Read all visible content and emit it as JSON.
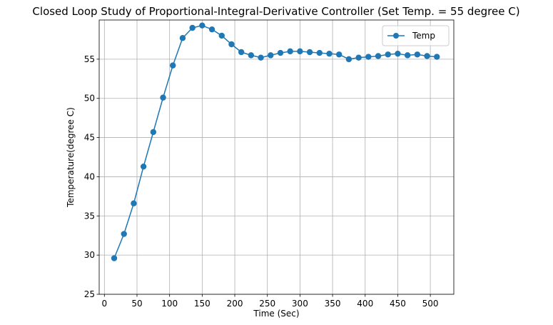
{
  "chart_data": {
    "type": "line",
    "title": "Closed Loop Study of Proportional-Integral-Derivative Controller (Set Temp. = 55 degree C)",
    "xlabel": "Time (Sec)",
    "ylabel": "Temperature(degree C)",
    "xlim": [
      -8,
      536
    ],
    "ylim": [
      25,
      60
    ],
    "x_ticks": [
      0,
      50,
      100,
      150,
      200,
      250,
      300,
      350,
      400,
      450,
      500
    ],
    "y_ticks": [
      25,
      30,
      35,
      40,
      45,
      50,
      55
    ],
    "grid": true,
    "legend_position": "top-right",
    "marker": "circle",
    "series": [
      {
        "name": "Temp",
        "color": "#1f77b4",
        "x": [
          15,
          30,
          45,
          60,
          75,
          90,
          105,
          120,
          135,
          150,
          165,
          180,
          195,
          210,
          225,
          240,
          255,
          270,
          285,
          300,
          315,
          330,
          345,
          360,
          375,
          390,
          405,
          420,
          435,
          450,
          465,
          480,
          495,
          510
        ],
        "y": [
          29.6,
          32.7,
          36.6,
          41.3,
          45.7,
          50.1,
          54.2,
          57.7,
          59.0,
          59.3,
          58.8,
          58.0,
          56.9,
          55.9,
          55.5,
          55.2,
          55.5,
          55.8,
          56.0,
          56.0,
          55.9,
          55.8,
          55.7,
          55.6,
          55.0,
          55.2,
          55.3,
          55.4,
          55.6,
          55.7,
          55.5,
          55.6,
          55.4,
          55.3
        ]
      }
    ]
  }
}
